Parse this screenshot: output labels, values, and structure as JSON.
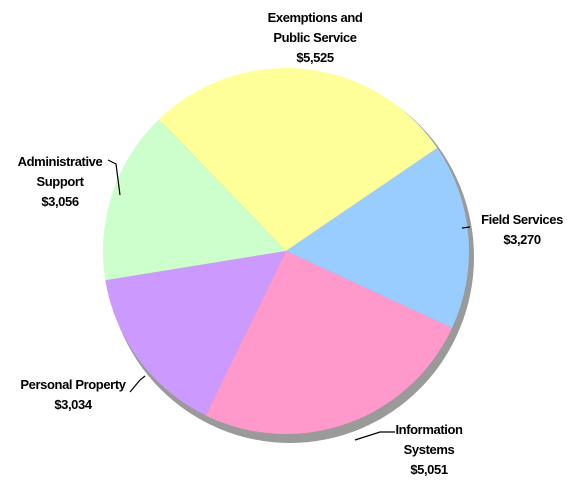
{
  "chart_data": {
    "type": "pie",
    "categories": [
      "Exemptions and Public Service",
      "Field Services",
      "Information Systems",
      "Personal Property",
      "Administrative Support"
    ],
    "values": [
      5525,
      3270,
      5051,
      3034,
      3056
    ],
    "value_labels": [
      "$5,525",
      "$3,270",
      "$5,051",
      "$3,034",
      "$3,056"
    ],
    "colors": [
      "#ffff99",
      "#99ccff",
      "#ff99cc",
      "#cc99ff",
      "#ccffcc"
    ]
  }
}
